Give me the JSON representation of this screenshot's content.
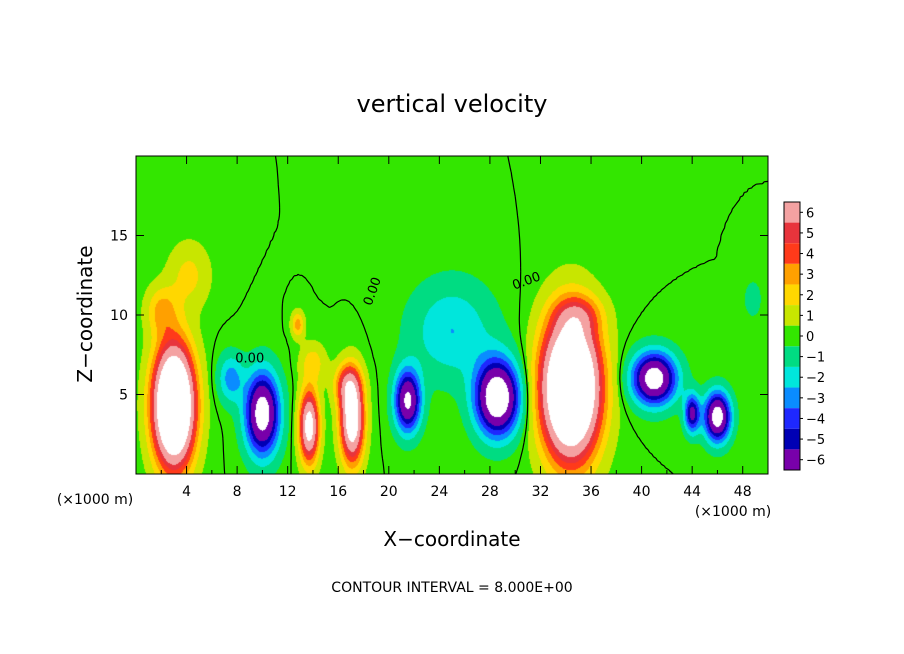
{
  "chart_data": {
    "type": "heatmap",
    "title": "vertical velocity",
    "xlabel": "X−coordinate",
    "ylabel": "Z−coordinate",
    "x_unit": "(×1000 m)",
    "y_unit": "(×1000 m)",
    "xlim": [
      0,
      50
    ],
    "ylim": [
      0,
      20
    ],
    "x_ticks": [
      4,
      8,
      12,
      16,
      20,
      24,
      28,
      32,
      36,
      40,
      44,
      48
    ],
    "y_ticks": [
      5,
      10,
      15
    ],
    "colorbar": {
      "levels": [
        6,
        5,
        4,
        3,
        2,
        1,
        0,
        -1,
        -2,
        -3,
        -4,
        -5,
        -6
      ],
      "labels": [
        "6",
        "5",
        "4",
        "3",
        "2",
        "1",
        "0",
        "−1",
        "−2",
        "−3",
        "−4",
        "−5",
        "−6"
      ],
      "colors": [
        "#f4a2a2",
        "#e8343c",
        "#ff3a1a",
        "#ffa000",
        "#ffd700",
        "#c8e600",
        "#33e600",
        "#00dc82",
        "#00e6dc",
        "#0a8cff",
        "#1e28ff",
        "#0000b4",
        "#7800aa"
      ]
    },
    "contour_label": "0.00",
    "contour_interval": "CONTOUR INTERVAL = 8.000E+00",
    "cells": [
      {
        "x": 3.0,
        "z": 4.3,
        "sx": 1.55,
        "sz": 3.6,
        "amp": 16
      },
      {
        "x": 34.4,
        "z": 5.4,
        "sx": 2.2,
        "sz": 4.2,
        "amp": 16
      },
      {
        "x": 13.7,
        "z": 3.0,
        "sx": 0.75,
        "sz": 2.2,
        "amp": 9
      },
      {
        "x": 17.1,
        "z": 3.4,
        "sx": 0.9,
        "sz": 2.6,
        "amp": 10
      },
      {
        "x": 16.7,
        "z": 5.6,
        "sx": 1.0,
        "sz": 1.3,
        "amp": 4
      },
      {
        "x": 12.8,
        "z": 9.4,
        "sx": 0.5,
        "sz": 0.8,
        "amp": 3
      },
      {
        "x": 4.2,
        "z": 12.5,
        "sx": 1.6,
        "sz": 2.0,
        "amp": 1.8
      },
      {
        "x": 2.0,
        "z": 10.3,
        "sx": 1.2,
        "sz": 1.5,
        "amp": 2.5
      },
      {
        "x": 35.0,
        "z": 10.0,
        "sx": 1.8,
        "sz": 1.2,
        "amp": 2.5
      },
      {
        "x": 14.0,
        "z": 7.0,
        "sx": 1.0,
        "sz": 1.2,
        "amp": 2
      },
      {
        "x": 10.0,
        "z": 3.8,
        "sx": 1.3,
        "sz": 2.5,
        "amp": -9
      },
      {
        "x": 21.5,
        "z": 4.6,
        "sx": 1.0,
        "sz": 1.9,
        "amp": -8
      },
      {
        "x": 28.6,
        "z": 4.8,
        "sx": 1.7,
        "sz": 2.3,
        "amp": -10
      },
      {
        "x": 41.0,
        "z": 6.0,
        "sx": 1.7,
        "sz": 1.6,
        "amp": -9
      },
      {
        "x": 46.0,
        "z": 3.6,
        "sx": 1.0,
        "sz": 1.5,
        "amp": -9
      },
      {
        "x": 44.0,
        "z": 3.8,
        "sx": 0.6,
        "sz": 1.2,
        "amp": -6
      },
      {
        "x": 25.0,
        "z": 9.0,
        "sx": 3.2,
        "sz": 3.0,
        "amp": -2.5
      },
      {
        "x": 7.5,
        "z": 6.0,
        "sx": 1.0,
        "sz": 1.5,
        "amp": -3
      },
      {
        "x": 48.8,
        "z": 11.0,
        "sx": 0.6,
        "sz": 1.0,
        "amp": -1.5
      }
    ]
  }
}
